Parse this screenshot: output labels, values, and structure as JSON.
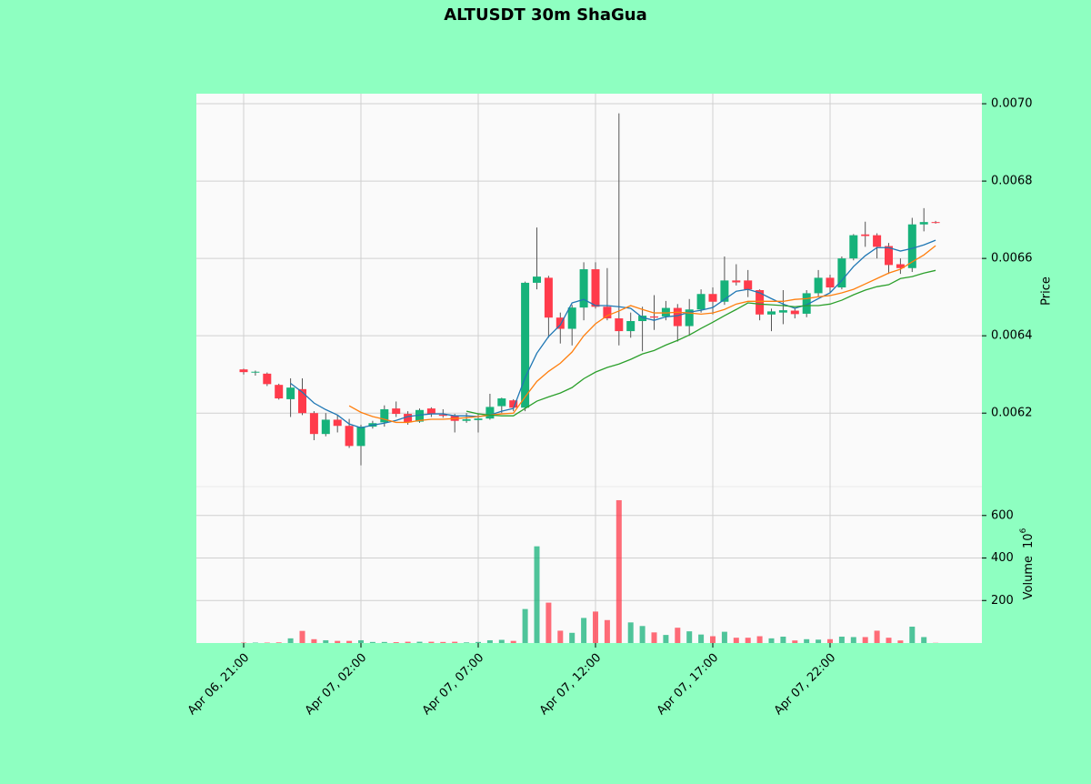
{
  "chart_data": {
    "type": "candlestick",
    "title": "ALTUSDT 30m ShaGua",
    "ylabel": "Price",
    "volume_ylabel": "Volume",
    "volume_scale": {
      "base": "10",
      "exponent": "6"
    },
    "up_color": "#16b27a",
    "down_color": "#ff3b4b",
    "grid": true,
    "categories": [
      "Apr 06, 21:00",
      null,
      null,
      null,
      null,
      null,
      null,
      null,
      null,
      null,
      "Apr 07, 02:00",
      null,
      null,
      null,
      null,
      null,
      null,
      null,
      null,
      null,
      "Apr 07, 07:00",
      null,
      null,
      null,
      null,
      null,
      null,
      null,
      null,
      null,
      "Apr 07, 12:00",
      null,
      null,
      null,
      null,
      null,
      null,
      null,
      null,
      null,
      "Apr 07, 17:00",
      null,
      null,
      null,
      null,
      null,
      null,
      null,
      null,
      null,
      "Apr 07, 22:00",
      null,
      null,
      null,
      null,
      null,
      null,
      null,
      null,
      null
    ],
    "open": [
      0.006313,
      0.006305,
      0.006302,
      0.006273,
      0.006236,
      0.006262,
      0.0062,
      0.006146,
      0.006183,
      0.006167,
      0.006115,
      0.006165,
      0.006176,
      0.006212,
      0.006198,
      0.006178,
      0.006212,
      0.006196,
      0.006193,
      0.00618,
      0.006182,
      0.006186,
      0.006218,
      0.006233,
      0.006214,
      0.006537,
      0.00655,
      0.006447,
      0.006418,
      0.006473,
      0.006572,
      0.006475,
      0.006445,
      0.006412,
      0.006438,
      0.00645,
      0.00645,
      0.006472,
      0.006425,
      0.006468,
      0.006508,
      0.006488,
      0.006543,
      0.006543,
      0.006518,
      0.006455,
      0.00646,
      0.006465,
      0.006457,
      0.00651,
      0.00655,
      0.006525,
      0.0066,
      0.006662,
      0.00666,
      0.006632,
      0.006585,
      0.006575,
      0.006688,
      0.006694
    ],
    "high": [
      0.006315,
      0.00631,
      0.006305,
      0.006276,
      0.00629,
      0.00629,
      0.006205,
      0.0062,
      0.006195,
      0.006185,
      0.00617,
      0.00618,
      0.00622,
      0.00623,
      0.006205,
      0.006212,
      0.006215,
      0.00621,
      0.006198,
      0.0062,
      0.0062,
      0.00625,
      0.00624,
      0.006236,
      0.00654,
      0.00668,
      0.006555,
      0.00646,
      0.00648,
      0.00659,
      0.00659,
      0.006575,
      0.006975,
      0.00646,
      0.006475,
      0.006505,
      0.00649,
      0.006482,
      0.006495,
      0.00652,
      0.006525,
      0.006605,
      0.006585,
      0.00657,
      0.00652,
      0.00647,
      0.006518,
      0.006472,
      0.006518,
      0.00657,
      0.006558,
      0.006605,
      0.006663,
      0.006695,
      0.006665,
      0.00664,
      0.0066,
      0.006705,
      0.00673,
      0.006697
    ],
    "low": [
      0.0063,
      0.006297,
      0.00627,
      0.006235,
      0.00619,
      0.006195,
      0.00613,
      0.00614,
      0.00615,
      0.00611,
      0.006065,
      0.00616,
      0.006165,
      0.00619,
      0.00617,
      0.006175,
      0.00619,
      0.006188,
      0.00615,
      0.006175,
      0.00615,
      0.006183,
      0.0062,
      0.006205,
      0.006205,
      0.00652,
      0.006395,
      0.00638,
      0.006375,
      0.00644,
      0.00647,
      0.00644,
      0.006375,
      0.006395,
      0.00636,
      0.006415,
      0.00644,
      0.006385,
      0.0064,
      0.00646,
      0.006455,
      0.00648,
      0.00653,
      0.0065,
      0.00644,
      0.006412,
      0.00643,
      0.006445,
      0.006448,
      0.0065,
      0.00651,
      0.00652,
      0.006595,
      0.00663,
      0.0066,
      0.00656,
      0.00656,
      0.006565,
      0.00667,
      0.00669
    ],
    "close": [
      0.006306,
      0.006307,
      0.006275,
      0.006238,
      0.006266,
      0.0062,
      0.006146,
      0.006183,
      0.006167,
      0.006115,
      0.006165,
      0.006174,
      0.00621,
      0.006198,
      0.006176,
      0.006208,
      0.006198,
      0.006193,
      0.00618,
      0.006184,
      0.006186,
      0.006216,
      0.006238,
      0.006214,
      0.006537,
      0.006553,
      0.006447,
      0.006418,
      0.006473,
      0.006572,
      0.006475,
      0.006445,
      0.006412,
      0.006438,
      0.006452,
      0.006447,
      0.006472,
      0.006425,
      0.006468,
      0.006508,
      0.006488,
      0.006543,
      0.006538,
      0.00652,
      0.006455,
      0.006463,
      0.006466,
      0.006456,
      0.00651,
      0.00655,
      0.006525,
      0.0066,
      0.00666,
      0.006658,
      0.00663,
      0.006583,
      0.006575,
      0.006688,
      0.006694,
      0.006692
    ],
    "volume": [
      2,
      2,
      2,
      3,
      22,
      57,
      18,
      13,
      10,
      10,
      13,
      5,
      5,
      4,
      6,
      6,
      6,
      5,
      6,
      3,
      5,
      13,
      15,
      10,
      160,
      455,
      190,
      58,
      48,
      118,
      148,
      108,
      672,
      97,
      80,
      50,
      38,
      72,
      55,
      40,
      32,
      53,
      25,
      25,
      32,
      22,
      30,
      12,
      18,
      16,
      18,
      30,
      28,
      28,
      58,
      25,
      12,
      77,
      28,
      1
    ],
    "moving_averages": [
      {
        "color": "#1f77b4",
        "values": [
          null,
          null,
          null,
          null,
          0.006277,
          0.006254,
          0.006226,
          0.006209,
          0.006195,
          0.006172,
          0.006162,
          0.006169,
          0.006174,
          0.006181,
          0.006191,
          0.006195,
          0.006198,
          0.006198,
          0.006193,
          0.006193,
          0.006191,
          0.006195,
          0.006205,
          0.006212,
          0.006292,
          0.006355,
          0.006398,
          0.006428,
          0.006485,
          0.006494,
          0.006478,
          0.006478,
          0.006475,
          0.006471,
          0.006447,
          0.00644,
          0.006449,
          0.006452,
          0.006461,
          0.006466,
          0.006473,
          0.006494,
          0.006515,
          0.00652,
          0.006511,
          0.006496,
          0.006482,
          0.006471,
          0.00648,
          0.006496,
          0.006511,
          0.006543,
          0.006579,
          0.006607,
          0.006628,
          0.006628,
          0.006619,
          0.006626,
          0.006635,
          0.006647
        ]
      },
      {
        "color": "#ff7f0e",
        "values": [
          null,
          null,
          null,
          null,
          null,
          null,
          null,
          null,
          null,
          0.006219,
          0.006202,
          0.006191,
          0.006184,
          0.006176,
          0.006176,
          0.006181,
          0.006184,
          0.006184,
          0.006186,
          0.006188,
          0.006191,
          0.006195,
          0.006198,
          0.0062,
          0.006242,
          0.006282,
          0.006308,
          0.006329,
          0.006358,
          0.0064,
          0.006431,
          0.006452,
          0.006464,
          0.006478,
          0.006468,
          0.006459,
          0.006459,
          0.006461,
          0.006459,
          0.006456,
          0.006459,
          0.006468,
          0.006482,
          0.006489,
          0.006489,
          0.006489,
          0.006489,
          0.006494,
          0.006496,
          0.006501,
          0.006504,
          0.006511,
          0.00652,
          0.006534,
          0.006548,
          0.006562,
          0.006572,
          0.006591,
          0.006609,
          0.006633
        ]
      },
      {
        "color": "#2ca02c",
        "values": [
          null,
          null,
          null,
          null,
          null,
          null,
          null,
          null,
          null,
          null,
          null,
          null,
          null,
          null,
          null,
          null,
          null,
          null,
          null,
          0.006205,
          0.006198,
          0.006195,
          0.006193,
          0.006193,
          0.006212,
          0.006231,
          0.006242,
          0.006252,
          0.006266,
          0.006289,
          0.006306,
          0.006318,
          0.006327,
          0.006339,
          0.006353,
          0.006362,
          0.006376,
          0.006388,
          0.006402,
          0.006419,
          0.006435,
          0.006452,
          0.006468,
          0.006485,
          0.006482,
          0.00648,
          0.006478,
          0.006475,
          0.006478,
          0.006478,
          0.006482,
          0.006492,
          0.006506,
          0.006518,
          0.006527,
          0.006532,
          0.006548,
          0.006553,
          0.006562,
          0.006569
        ]
      }
    ],
    "ylim": [
      0.00601,
      0.007026
    ],
    "yticks": [
      0.0062,
      0.0064,
      0.0066,
      0.0068,
      {
        "value": 0.007,
        "label": "0.0070"
      }
    ],
    "volume_ylim": [
      0,
      736
    ],
    "volume_yticks": [
      200,
      400,
      600
    ]
  }
}
